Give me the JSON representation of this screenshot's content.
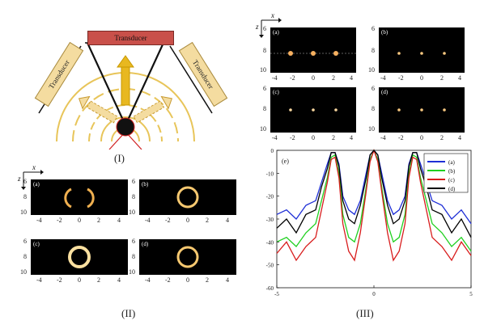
{
  "part_I": {
    "roman": "(I)",
    "transducer_top": "Transducer",
    "transducer_left": "Transducer",
    "transducer_right": "Transducer"
  },
  "part_II": {
    "roman": "(II)",
    "axis_x": "x",
    "axis_z": "z",
    "panel_labels": [
      "(a)",
      "(b)",
      "(c)",
      "(d)"
    ],
    "y_ticks": [
      "6",
      "8",
      "10"
    ],
    "x_ticks": [
      "-4",
      "-2",
      "0",
      "2",
      "4"
    ]
  },
  "part_III": {
    "roman": "(III)",
    "axis_x": "x",
    "axis_z": "z",
    "panel_labels": [
      "(a)",
      "(b)",
      "(c)",
      "(d)"
    ],
    "y_ticks": [
      "6",
      "8",
      "10"
    ],
    "x_ticks": [
      "-4",
      "-2",
      "0",
      "2",
      "4"
    ]
  },
  "chart_data": {
    "type": "line",
    "panel_label": "(e)",
    "xlim": [
      -5,
      5
    ],
    "ylim": [
      -60,
      0
    ],
    "x_ticks": [
      "-5",
      "0",
      "5"
    ],
    "y_ticks": [
      "0",
      "-10",
      "-20",
      "-30",
      "-40",
      "-50",
      "-60"
    ],
    "legend_position": "top-right",
    "colors": {
      "(a)": "#1f2fd6",
      "(b)": "#20d020",
      "(c)": "#d81c1c",
      "(d)": "#000000"
    },
    "x": [
      -5,
      -4.5,
      -4,
      -3.5,
      -3,
      -2.7,
      -2.4,
      -2.2,
      -2,
      -1.8,
      -1.6,
      -1.3,
      -1,
      -0.7,
      -0.4,
      -0.2,
      0,
      0.2,
      0.4,
      0.7,
      1,
      1.3,
      1.6,
      1.8,
      2,
      2.2,
      2.4,
      2.7,
      3,
      3.5,
      4,
      4.5,
      5
    ],
    "series": [
      {
        "name": "(a)",
        "values": [
          -28,
          -26,
          -30,
          -24,
          -22,
          -14,
          -6,
          -1,
          -1,
          -6,
          -20,
          -26,
          -28,
          -22,
          -10,
          -2,
          0,
          -2,
          -10,
          -22,
          -28,
          -26,
          -20,
          -6,
          -1,
          -1,
          -6,
          -14,
          -22,
          -24,
          -30,
          -26,
          -32
        ]
      },
      {
        "name": "(b)",
        "values": [
          -40,
          -38,
          -42,
          -36,
          -32,
          -22,
          -12,
          -3,
          -2,
          -10,
          -28,
          -38,
          -40,
          -32,
          -16,
          -4,
          0,
          -4,
          -16,
          -32,
          -40,
          -38,
          -28,
          -10,
          -2,
          -3,
          -12,
          -22,
          -32,
          -36,
          -42,
          -38,
          -44
        ]
      },
      {
        "name": "(c)",
        "values": [
          -45,
          -40,
          -48,
          -42,
          -38,
          -26,
          -14,
          -4,
          -3,
          -12,
          -32,
          -44,
          -48,
          -36,
          -18,
          -5,
          0,
          -5,
          -18,
          -36,
          -48,
          -44,
          -32,
          -12,
          -3,
          -4,
          -14,
          -26,
          -38,
          -42,
          -48,
          -40,
          -46
        ]
      },
      {
        "name": "(d)",
        "values": [
          -34,
          -30,
          -36,
          -28,
          -26,
          -16,
          -8,
          -1,
          -1,
          -7,
          -22,
          -30,
          -32,
          -24,
          -12,
          -2,
          0,
          -2,
          -12,
          -24,
          -32,
          -30,
          -22,
          -7,
          -1,
          -1,
          -8,
          -16,
          -26,
          -28,
          -36,
          -30,
          -38
        ]
      }
    ]
  }
}
